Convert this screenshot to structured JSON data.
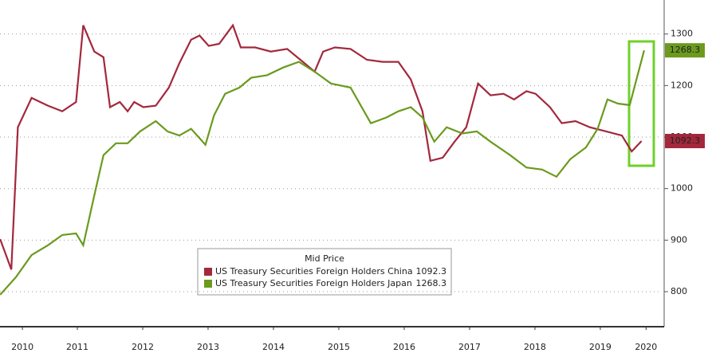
{
  "chart_data": {
    "type": "line",
    "legend_title": "Mid Price",
    "series": [
      {
        "name": "US Treasury Securities Foreign Holders China",
        "color": "#a3283c",
        "x": [
          2010.32,
          2010.49,
          2010.59,
          2010.8,
          2011.05,
          2011.27,
          2011.48,
          2011.59,
          2011.76,
          2011.9,
          2012.0,
          2012.15,
          2012.27,
          2012.37,
          2012.51,
          2012.7,
          2012.9,
          2013.06,
          2013.24,
          2013.37,
          2013.51,
          2013.67,
          2013.88,
          2014.0,
          2014.22,
          2014.46,
          2014.71,
          2014.95,
          2015.13,
          2015.26,
          2015.44,
          2015.68,
          2015.93,
          2016.17,
          2016.41,
          2016.6,
          2016.78,
          2016.9,
          2017.09,
          2017.27,
          2017.45,
          2017.63,
          2017.82,
          2018.02,
          2018.18,
          2018.37,
          2018.51,
          2018.73,
          2018.91,
          2019.12,
          2019.34,
          2019.59,
          2019.83,
          2019.98,
          2020.13
        ],
        "values": [
          902,
          843,
          1119,
          1176,
          1161,
          1150,
          1168,
          1317,
          1266,
          1255,
          1158,
          1168,
          1150,
          1168,
          1158,
          1161,
          1196,
          1243,
          1289,
          1297,
          1277,
          1281,
          1317,
          1274,
          1274,
          1266,
          1271,
          1246,
          1227,
          1266,
          1274,
          1271,
          1250,
          1246,
          1246,
          1212,
          1150,
          1054,
          1060,
          1091,
          1119,
          1204,
          1181,
          1184,
          1173,
          1189,
          1184,
          1158,
          1127,
          1131,
          1119,
          1111,
          1103,
          1072,
          1092.3
        ]
      },
      {
        "name": "US Treasury Securities Foreign Holders Japan",
        "color": "#6b9a1e",
        "x": [
          2010.32,
          2010.56,
          2010.8,
          2011.05,
          2011.27,
          2011.48,
          2011.59,
          2011.76,
          2011.9,
          2012.09,
          2012.27,
          2012.46,
          2012.7,
          2012.88,
          2013.06,
          2013.24,
          2013.46,
          2013.59,
          2013.76,
          2013.98,
          2014.16,
          2014.4,
          2014.65,
          2014.89,
          2015.13,
          2015.38,
          2015.68,
          2015.99,
          2016.23,
          2016.41,
          2016.6,
          2016.78,
          2016.96,
          2017.15,
          2017.39,
          2017.61,
          2017.82,
          2018.12,
          2018.37,
          2018.61,
          2018.83,
          2019.04,
          2019.28,
          2019.46,
          2019.61,
          2019.77,
          2019.95,
          2020.17
        ],
        "values": [
          794,
          828,
          871,
          890,
          910,
          913,
          890,
          987,
          1065,
          1088,
          1088,
          1111,
          1131,
          1111,
          1103,
          1116,
          1085,
          1142,
          1184,
          1196,
          1215,
          1220,
          1235,
          1246,
          1227,
          1204,
          1196,
          1127,
          1138,
          1150,
          1158,
          1138,
          1091,
          1119,
          1107,
          1111,
          1091,
          1065,
          1041,
          1037,
          1023,
          1057,
          1080,
          1116,
          1173,
          1165,
          1162,
          1268.3
        ]
      }
    ],
    "xlim": [
      2010.317,
      2020.44
    ],
    "xticks": [
      {
        "value": 2010.66,
        "label": "2010"
      },
      {
        "value": 2011.5,
        "label": "2011"
      },
      {
        "value": 2012.5,
        "label": "2012"
      },
      {
        "value": 2013.5,
        "label": "2013"
      },
      {
        "value": 2014.5,
        "label": "2014"
      },
      {
        "value": 2015.5,
        "label": "2015"
      },
      {
        "value": 2016.5,
        "label": "2016"
      },
      {
        "value": 2017.5,
        "label": "2017"
      },
      {
        "value": 2018.5,
        "label": "2018"
      },
      {
        "value": 2019.5,
        "label": "2019"
      },
      {
        "value": 2020.2,
        "label": "2020"
      }
    ],
    "ylim": [
      732,
      1366
    ],
    "yticks": [
      800,
      900,
      1000,
      1100,
      1200,
      1300
    ],
    "grid": true
  }
}
